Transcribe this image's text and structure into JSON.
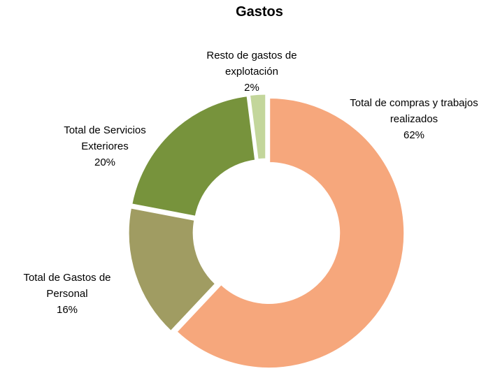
{
  "chart_data": {
    "type": "donut",
    "title": "Gastos",
    "categories": [
      "Total de compras y trabajos realizados",
      "Total de Gastos de Personal",
      "Total de Servicios Exteriores",
      "Resto de gastos de explotación"
    ],
    "values": [
      62,
      16,
      20,
      2
    ],
    "value_labels": [
      "62%",
      "16%",
      "20%",
      "2%"
    ],
    "colors": [
      "#f6a77c",
      "#a09c62",
      "#77933c",
      "#c3d69b"
    ]
  }
}
